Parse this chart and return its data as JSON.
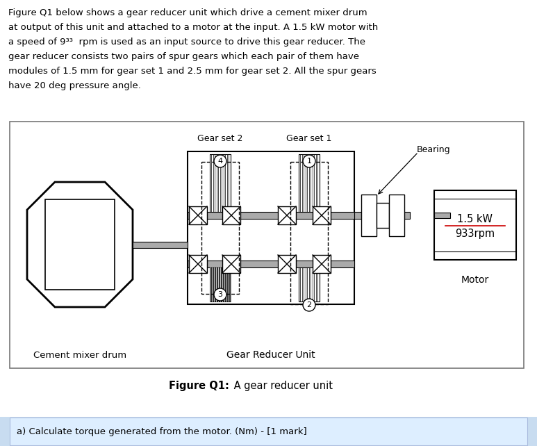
{
  "para_lines": [
    "Figure Q1 below shows a gear reducer unit which drive a cement mixer drum",
    "at output of this unit and attached to a motor at the input. A 1.5 kW motor with",
    "a speed of 9³³  rpm is used as an input source to drive this gear reducer. The",
    "gear reducer consists two pairs of spur gears which each pair of them have",
    "modules of 1.5 mm for gear set 1 and 2.5 mm for gear set 2. All the spur gears",
    "have 20 deg pressure angle."
  ],
  "figure_caption_bold": "Figure Q1:",
  "figure_caption_normal": " A gear reducer unit",
  "question_text": "a) Calculate torque generated from the motor. (Nm) - [1 mark]",
  "label_gear_set2": "Gear set 2",
  "label_gear_set1": "Gear set 1",
  "label_bearing": "Bearing",
  "label_motor": "Motor",
  "label_motor_power": "1.5 kW",
  "label_motor_speed": "933rpm",
  "label_cement": "Cement mixer drum",
  "label_reducer": "Gear Reducer Unit",
  "color_bg": "#ffffff",
  "color_shaft": "#aaaaaa",
  "color_gear_teeth": "#ffffff",
  "color_gear_dark": "#333333",
  "color_question_bg": "#ddeeff",
  "color_question_border": "#aabbdd",
  "color_red_line": "#cc0000"
}
